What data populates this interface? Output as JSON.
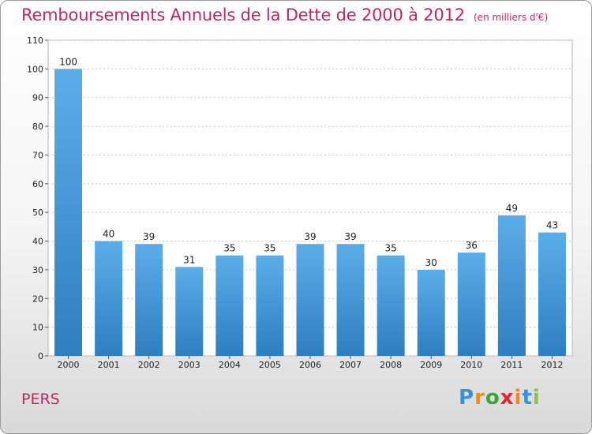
{
  "header": {
    "title": "Remboursements Annuels de la Dette de 2000 à 2012",
    "subtitle": "(en milliers d'€)"
  },
  "footer": {
    "place": "PERS",
    "logo": [
      "P",
      "r",
      "o",
      "x",
      "i",
      "t",
      "i"
    ],
    "logo_colors": [
      "#3a8fd6",
      "#f08a1e",
      "#3aa63a",
      "#e8262a",
      "#f08a1e",
      "#3a8fd6",
      "#8bc34a"
    ]
  },
  "colors": {
    "bar_top": "#5aaee8",
    "bar_bottom": "#2d7fc0",
    "accent": "#c0265e"
  },
  "chart_data": {
    "type": "bar",
    "title": "Remboursements Annuels de la Dette de 2000 à 2012",
    "subtitle": "(en milliers d'€)",
    "categories": [
      "2000",
      "2001",
      "2002",
      "2003",
      "2004",
      "2005",
      "2006",
      "2007",
      "2008",
      "2009",
      "2010",
      "2011",
      "2012"
    ],
    "values": [
      100,
      40,
      39,
      31,
      35,
      35,
      39,
      39,
      35,
      30,
      36,
      49,
      43
    ],
    "ylim": [
      0,
      110
    ],
    "yticks": [
      0,
      10,
      20,
      30,
      40,
      50,
      60,
      70,
      80,
      90,
      100,
      110
    ],
    "grid": true,
    "legend": "none"
  }
}
